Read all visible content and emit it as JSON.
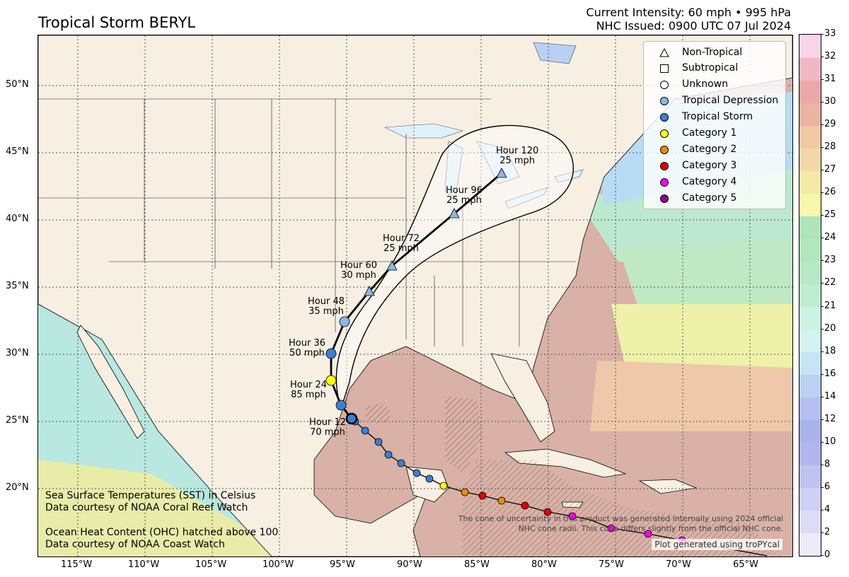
{
  "header": {
    "title": "Tropical Storm BERYL",
    "intensity": "Current Intensity: 60 mph • 995 hPa",
    "issued": "NHC Issued: 0900 UTC 07 Jul 2024"
  },
  "axes": {
    "longitudes": [
      "115°W",
      "110°W",
      "105°W",
      "100°W",
      "95°W",
      "90°W",
      "85°W",
      "80°W",
      "75°W",
      "70°W",
      "65°W"
    ],
    "latitudes": [
      "50°N",
      "45°N",
      "40°N",
      "35°N",
      "30°N",
      "25°N",
      "20°N"
    ]
  },
  "legend": {
    "items": [
      {
        "label": "Non-Tropical",
        "shape": "triangle-open",
        "color": "#ffffff"
      },
      {
        "label": "Subtropical",
        "shape": "square-open",
        "color": "#ffffff"
      },
      {
        "label": "Unknown",
        "shape": "circle-open",
        "color": "#ffffff"
      },
      {
        "label": "Tropical Depression",
        "shape": "circle",
        "color": "#8ab8e8"
      },
      {
        "label": "Tropical Storm",
        "shape": "circle",
        "color": "#3c7fd0"
      },
      {
        "label": "Category 1",
        "shape": "circle",
        "color": "#ffff00"
      },
      {
        "label": "Category 2",
        "shape": "circle",
        "color": "#f08c00"
      },
      {
        "label": "Category 3",
        "shape": "circle",
        "color": "#e00000"
      },
      {
        "label": "Category 4",
        "shape": "circle",
        "color": "#ff00ff"
      },
      {
        "label": "Category 5",
        "shape": "circle",
        "color": "#900090"
      }
    ]
  },
  "forecast": [
    {
      "hour": "Hour 12",
      "wind": "70 mph"
    },
    {
      "hour": "Hour 24",
      "wind": "85 mph"
    },
    {
      "hour": "Hour 36",
      "wind": "50 mph"
    },
    {
      "hour": "Hour 48",
      "wind": "35 mph"
    },
    {
      "hour": "Hour 60",
      "wind": "30 mph"
    },
    {
      "hour": "Hour 72",
      "wind": "25 mph"
    },
    {
      "hour": "Hour 96",
      "wind": "25 mph"
    },
    {
      "hour": "Hour 120",
      "wind": "25 mph"
    }
  ],
  "notes": {
    "sst_line1": "Sea Surface Temperatures (SST) in Celsius",
    "sst_line2": "Data courtesy of NOAA Coral Reef Watch",
    "ohc_line1": "Ocean Heat Content (OHC) hatched above 100",
    "ohc_line2": "Data courtesy of NOAA Coast Watch",
    "cone_line1": "The cone of uncertainty in this product was generated internally using 2024 official",
    "cone_line2": "NHC cone radii. This cone differs slightly from the official NHC cone.",
    "credit": "Plot generated using troPYcal"
  },
  "colorbar": {
    "ticks": [
      "0",
      "2",
      "4",
      "6",
      "8",
      "10",
      "12",
      "14",
      "16",
      "18",
      "20",
      "21",
      "22",
      "23",
      "24",
      "25",
      "26",
      "27",
      "28",
      "29",
      "30",
      "31",
      "32",
      "33"
    ],
    "colors": [
      "#ffffff",
      "#ebebfb",
      "#dcdcf8",
      "#cfd0f5",
      "#c0c2f0",
      "#b3b6ee",
      "#a9b3ec",
      "#b5c0f0",
      "#bcd1f2",
      "#c6e4f4",
      "#d4f2f0",
      "#ccf2e2",
      "#c0ecd0",
      "#b8e8c4",
      "#b2e6bc",
      "#aee4b8",
      "#f8f8a8",
      "#f4eaa8",
      "#f2d8a8",
      "#f0c8a4",
      "#eab4a4",
      "#eaa8a8",
      "#f0b8c4",
      "#f6d4ea"
    ]
  },
  "track_colors": {
    "td": "#8ab8e8",
    "ts": "#3c7fd0",
    "c1": "#ffff00",
    "c2": "#f08c00",
    "c3": "#e00000",
    "c4": "#ff00ff"
  }
}
